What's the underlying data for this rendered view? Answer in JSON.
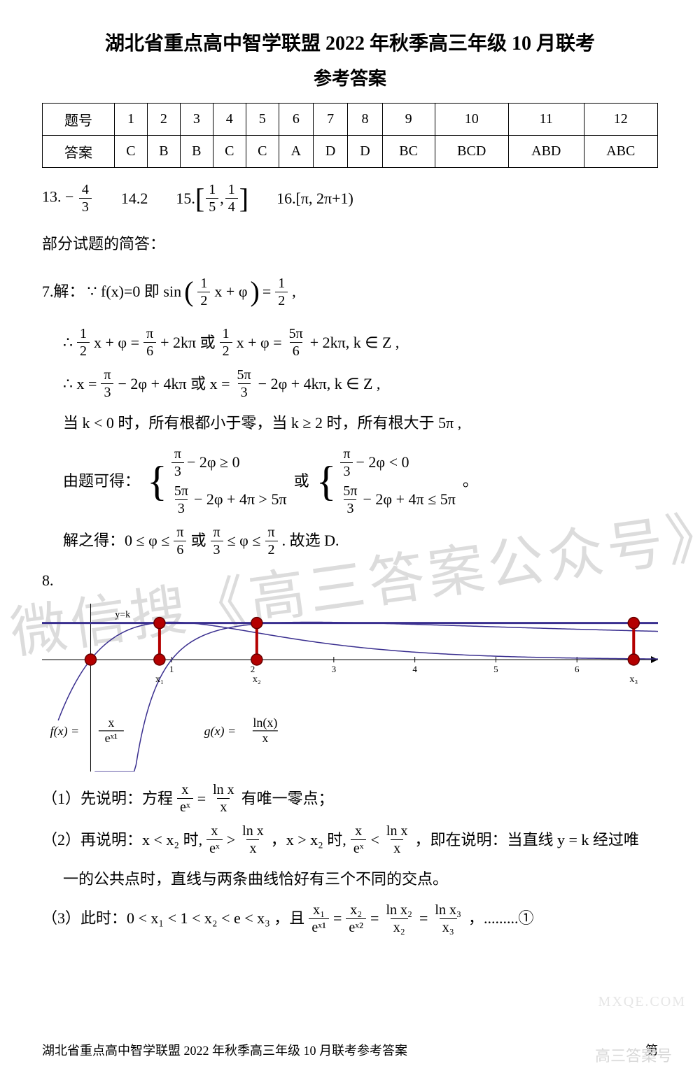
{
  "header": {
    "title": "湖北省重点高中智学联盟 2022 年秋季高三年级 10 月联考",
    "subtitle": "参考答案"
  },
  "answer_table": {
    "row_labels": [
      "题号",
      "答案"
    ],
    "cols": [
      "1",
      "2",
      "3",
      "4",
      "5",
      "6",
      "7",
      "8",
      "9",
      "10",
      "11",
      "12"
    ],
    "answers": [
      "C",
      "B",
      "B",
      "C",
      "C",
      "A",
      "D",
      "D",
      "BC",
      "BCD",
      "ABD",
      "ABC"
    ],
    "border_color": "#000000",
    "cell_fontsize": 20
  },
  "fill_answers": {
    "q13": {
      "label": "13.",
      "value_num": "4",
      "value_den": "3",
      "sign": "−"
    },
    "q14": {
      "label": "14.",
      "value": "2"
    },
    "q15": {
      "label": "15.",
      "lo_num": "1",
      "lo_den": "5",
      "hi_num": "1",
      "hi_den": "4"
    },
    "q16": {
      "label": "16.",
      "expr": "[π, 2π+1)"
    }
  },
  "section_heading": "部分试题的简答：",
  "q7": {
    "label": "7.解：",
    "line1_a": "∵ f(x)=0 即 sin",
    "line1_b": "x + φ",
    "line1_c": "=",
    "line1_half_num": "1",
    "line1_half_den": "2",
    "line2_a": "∴",
    "line2_b": "x + φ =",
    "line2_c": "+ 2kπ 或",
    "line2_d": "x + φ =",
    "line2_e": "+ 2kπ, k ∈ Z ,",
    "pi6_num": "π",
    "pi6_den": "6",
    "five_pi6_num": "5π",
    "five_pi6_den": "6",
    "half_num": "1",
    "half_den": "2",
    "line3_a": "∴ x =",
    "line3_b": "− 2φ + 4kπ 或 x =",
    "line3_c": "− 2φ + 4kπ, k ∈ Z ,",
    "pi3_num": "π",
    "pi3_den": "3",
    "five_pi3_num": "5π",
    "five_pi3_den": "3",
    "line4": "当 k < 0 时，所有根都小于零，当 k ≥ 2 时，所有根大于 5π ,",
    "line5_a": "由题可得：",
    "cond1_top": "− 2φ ≥ 0",
    "cond1_bot": "− 2φ + 4π > 5π",
    "cond_or": "或",
    "cond2_top": "− 2φ < 0",
    "cond2_bot": "− 2φ + 4π ≤ 5π",
    "period": "。",
    "line6_a": "解之得：0 ≤ φ ≤",
    "line6_b": "或",
    "line6_c": "≤ φ ≤",
    "line6_d": ". 故选 D.",
    "pi2_num": "π",
    "pi2_den": "2"
  },
  "q8": {
    "label": "8.",
    "chart": {
      "type": "function-plot",
      "background": "#ffffff",
      "axis_color": "#000000",
      "axis_width": 1,
      "xlim": [
        -0.6,
        7.0
      ],
      "ylim": [
        -1.1,
        0.55
      ],
      "xticks": [
        1,
        2,
        3,
        4,
        5,
        6
      ],
      "xtick_labels": [
        "1",
        "2",
        "3",
        "4",
        "5",
        "6"
      ],
      "k_line": {
        "y": 0.36,
        "color": "#3a2f8f",
        "width": 3,
        "label": "y=k",
        "label_color": "#000000",
        "label_fontsize": 14
      },
      "curves": [
        {
          "name": "f(x)=x/e^x shifted",
          "color": "#3a2f8f",
          "width": 1.5,
          "domain": [
            -0.4,
            7.0
          ]
        },
        {
          "name": "g(x)=ln(x)/x",
          "color": "#3a2f8f",
          "width": 1.5,
          "domain": [
            0.05,
            7.0
          ]
        }
      ],
      "markers": {
        "color_fill": "#b40000",
        "color_stroke": "#660000",
        "radius": 8,
        "points_on_k": [
          0.85,
          2.05,
          6.7
        ],
        "points_on_axis": [
          0.0,
          0.85,
          2.05,
          6.7
        ],
        "x_labels": [
          "x₁",
          "x₂",
          "x₃"
        ],
        "x_label_fontsize": 14,
        "stem_color": "#b40000",
        "stem_width": 4
      },
      "fx_label": {
        "text": "f(x) =",
        "num": "x",
        "den": "eˣ¹",
        "fontsize": 18
      },
      "gx_label": {
        "text": "g(x) =",
        "num": "ln(x)",
        "den": "x",
        "fontsize": 18
      }
    },
    "line1_a": "（1）先说明：方程",
    "line1_b": "=",
    "line1_c": "有唯一零点；",
    "xe_num": "x",
    "xe_den": "eˣ",
    "lnx_num": "ln x",
    "lnx_den": "x",
    "line2_a": "（2）再说明：x < x₂ 时,",
    "line2_b": ">",
    "line2_c": "，x > x₂ 时,",
    "line2_d": "<",
    "line2_e": "，即在说明：当直线 y = k 经过唯",
    "line2_f": "一的公共点时，直线与两条曲线恰好有三个不同的交点。",
    "line3_a": "（3）此时：0 < x₁ < 1 < x₂ < e < x₃ ，且",
    "line3_eq": "=",
    "line3_tail": "，.........①",
    "x1_num": "x₁",
    "x1_den": "eˣ¹",
    "x2_num": "x₂",
    "x2_den": "eˣ²",
    "lnx2_num": "ln x₂",
    "lnx2_den": "x₂",
    "lnx3_num": "ln x₃",
    "lnx3_den": "x₃"
  },
  "footer": {
    "left": "湖北省重点高中智学联盟 2022 年秋季高三年级 10 月联考参考答案",
    "right": "第"
  },
  "watermarks": {
    "diag": "微信搜《高三答案公众号》",
    "corner": "高三答案号",
    "site": "MXQE.COM"
  }
}
